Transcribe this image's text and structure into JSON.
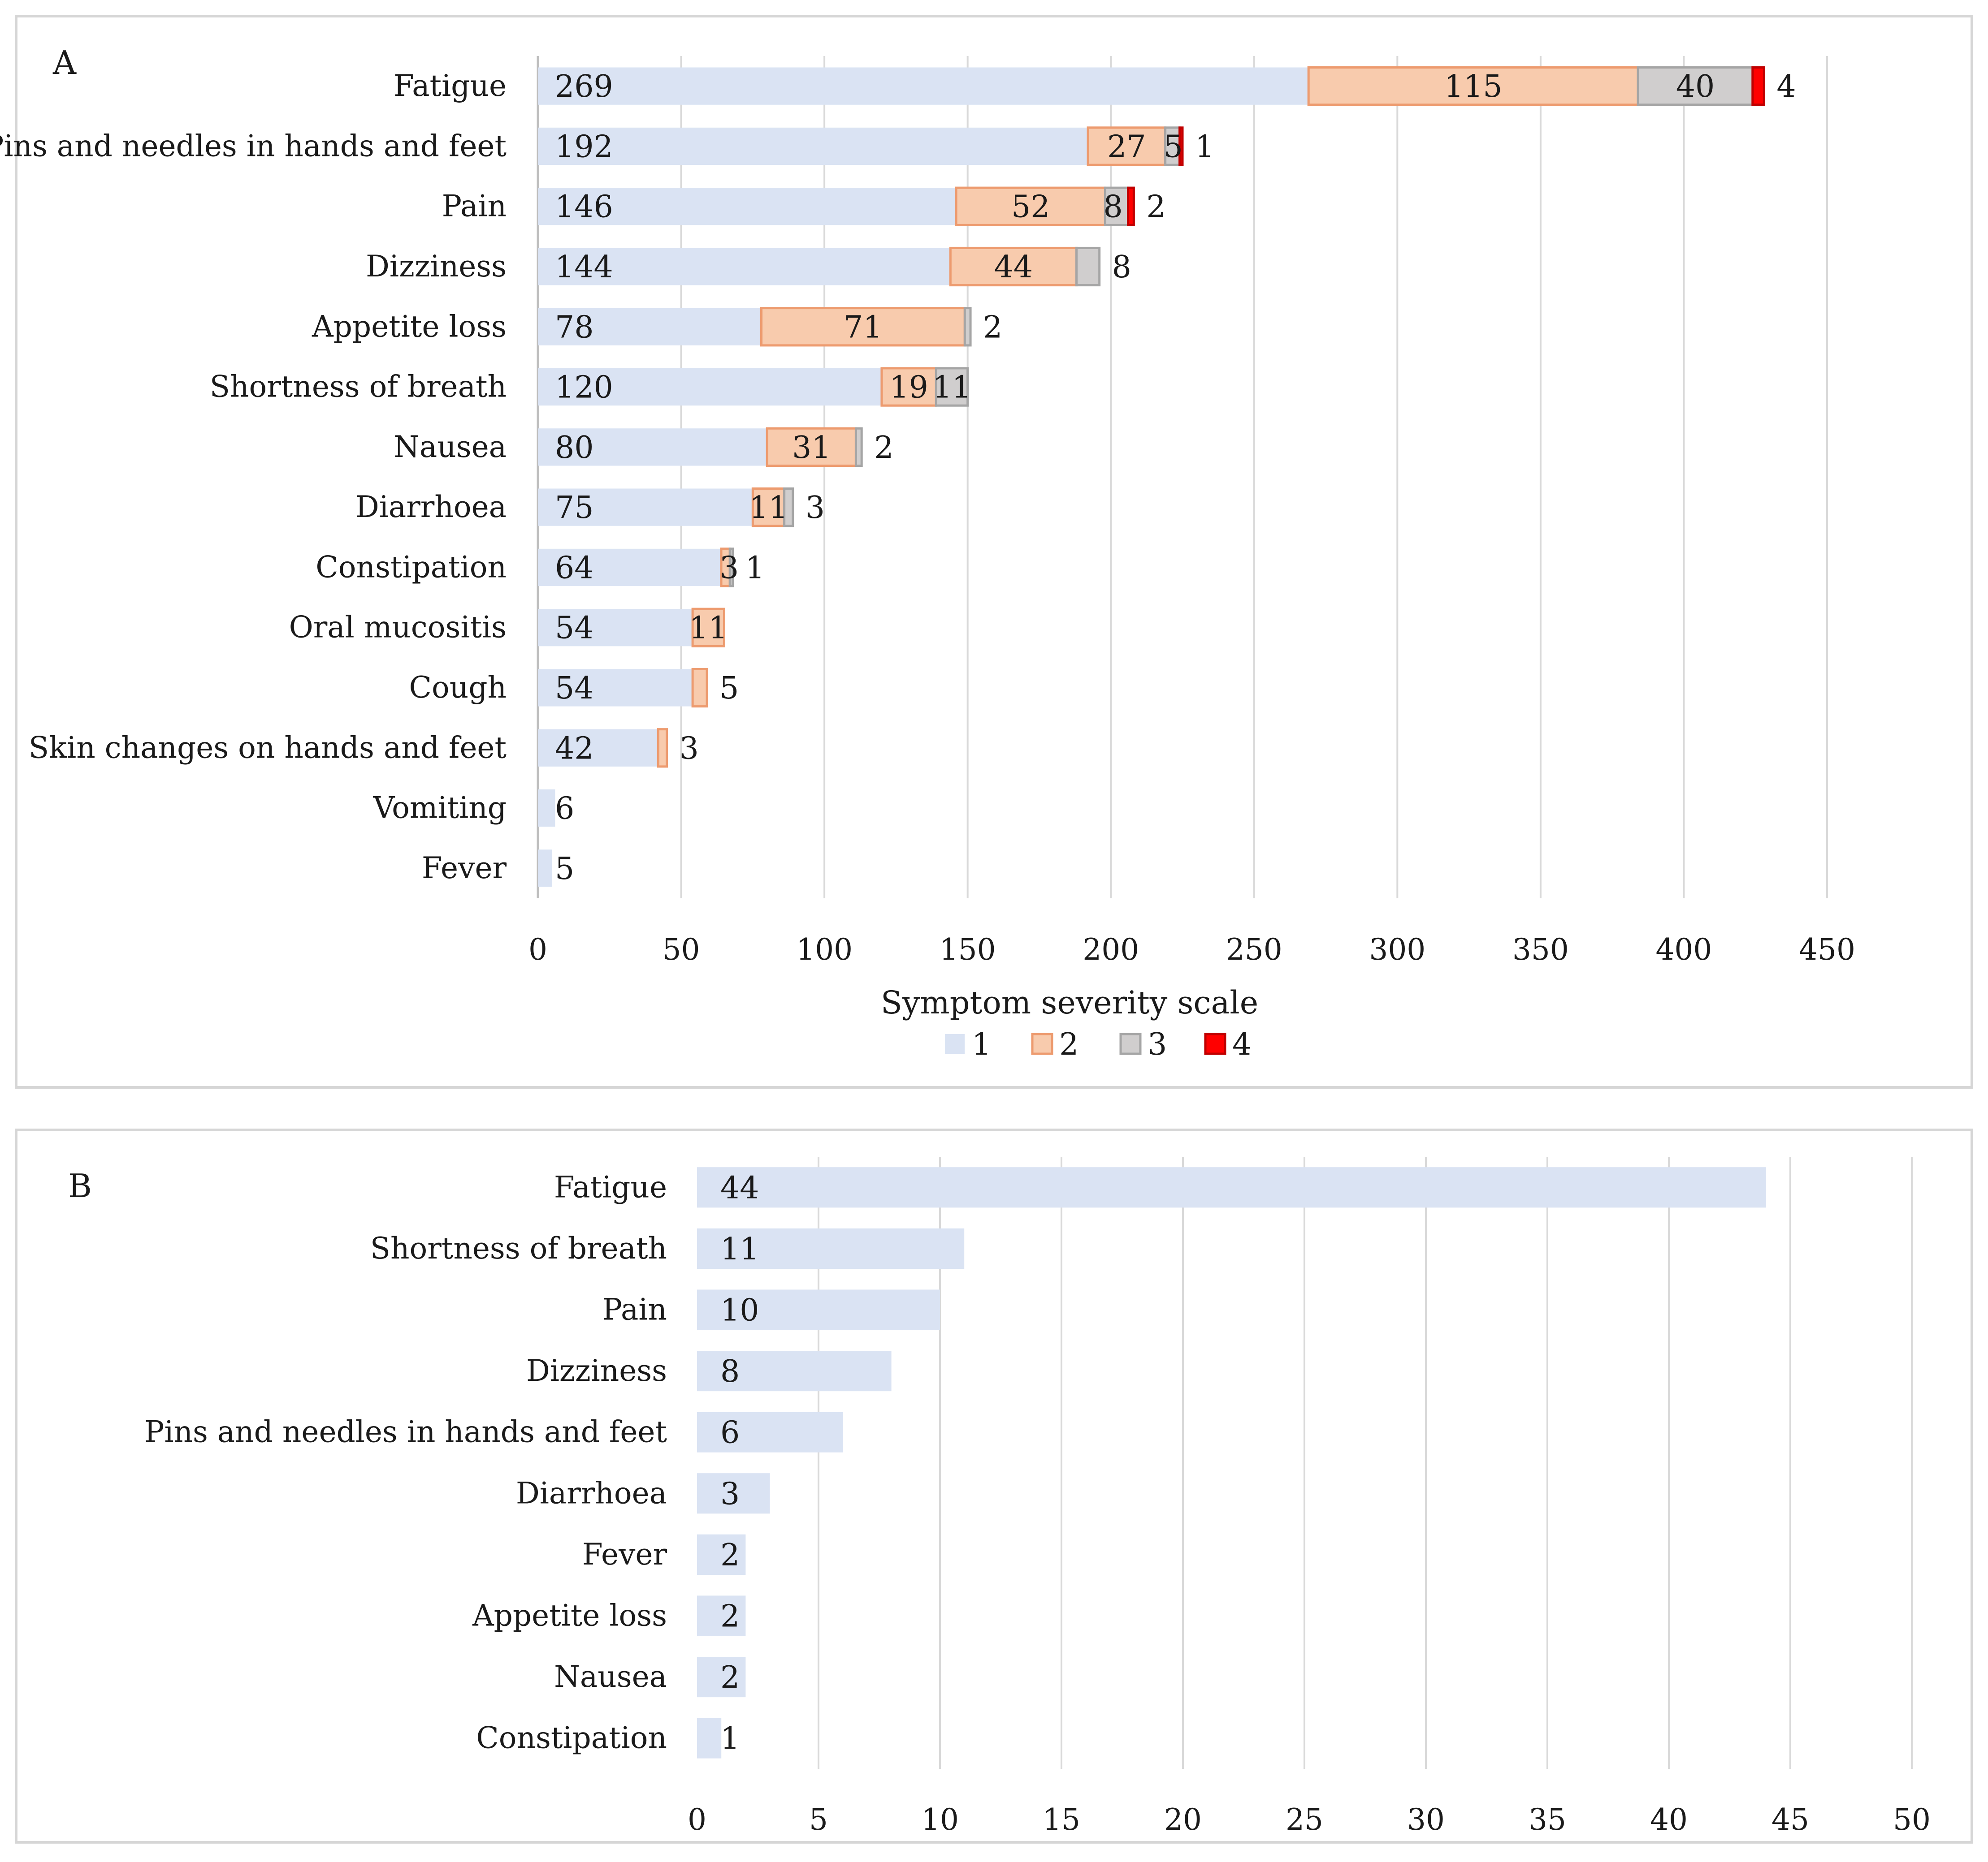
{
  "colors": {
    "s1_fill": "#dae3f3",
    "s1_stroke": "#dae3f3",
    "s2_fill": "#f8cbad",
    "s2_stroke": "#ed9b6f",
    "s3_fill": "#d0cece",
    "s3_stroke": "#a5a5a5",
    "s4_fill": "#ff0000",
    "s4_stroke": "#c00000"
  },
  "chart_data": [
    {
      "panel": "A",
      "type": "bar",
      "orientation": "horizontal",
      "stacked": true,
      "categories": [
        "Fatigue",
        "Pins and needles in hands and feet",
        "Pain",
        "Dizziness",
        "Appetite loss",
        "Shortness of breath",
        "Nausea",
        "Diarrhoea",
        "Constipation",
        "Oral mucositis",
        "Cough",
        "Skin changes on hands and feet",
        "Vomiting",
        "Fever"
      ],
      "series": [
        {
          "name": "1",
          "values": [
            269,
            192,
            146,
            144,
            78,
            120,
            80,
            75,
            64,
            54,
            54,
            42,
            6,
            5
          ]
        },
        {
          "name": "2",
          "values": [
            115,
            27,
            52,
            44,
            71,
            19,
            31,
            11,
            3,
            11,
            5,
            3,
            0,
            0
          ]
        },
        {
          "name": "3",
          "values": [
            40,
            5,
            8,
            8,
            2,
            11,
            2,
            3,
            1,
            0,
            0,
            0,
            0,
            0
          ]
        },
        {
          "name": "4",
          "values": [
            4,
            1,
            2,
            0,
            0,
            0,
            0,
            0,
            0,
            0,
            0,
            0,
            0,
            0
          ]
        }
      ],
      "xlim": [
        0,
        450
      ],
      "ticks": [
        0,
        50,
        100,
        150,
        200,
        250,
        300,
        350,
        400,
        450
      ],
      "xlabel": "Symptom severity scale",
      "legend_entries": [
        "1",
        "2",
        "3",
        "4"
      ],
      "legend_position": "bottom",
      "grid": true
    },
    {
      "panel": "B",
      "type": "bar",
      "orientation": "horizontal",
      "stacked": false,
      "categories": [
        "Fatigue",
        "Shortness of breath",
        "Pain",
        "Dizziness",
        "Pins and needles in hands and feet",
        "Diarrhoea",
        "Fever",
        "Appetite loss",
        "Nausea",
        "Constipation"
      ],
      "values": [
        44,
        11,
        10,
        8,
        6,
        3,
        2,
        2,
        2,
        1
      ],
      "xlim": [
        0,
        50
      ],
      "ticks": [
        0,
        5,
        10,
        15,
        20,
        25,
        30,
        35,
        40,
        45,
        50
      ],
      "grid": true
    }
  ]
}
